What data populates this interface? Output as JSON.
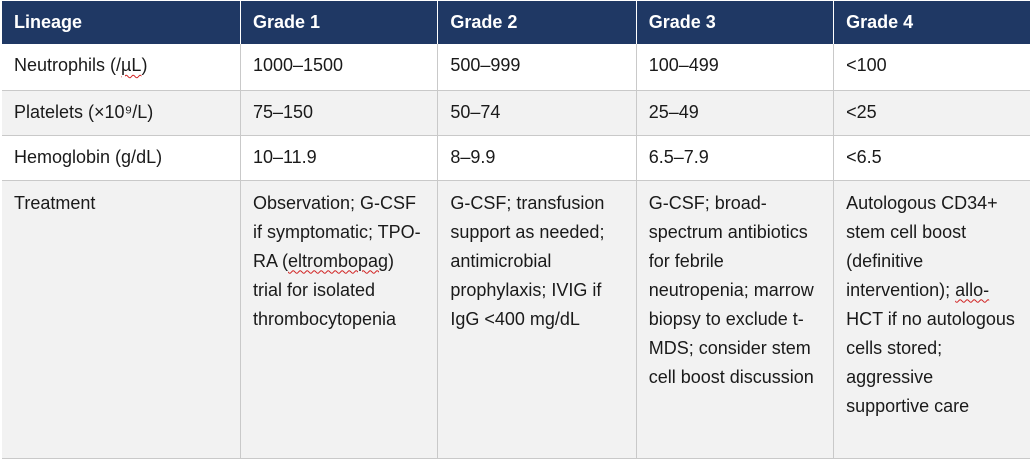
{
  "table": {
    "headers": [
      "Lineage",
      "Grade 1",
      "Grade 2",
      "Grade 3",
      "Grade 4"
    ],
    "rows": [
      {
        "lineage": "Neutrophils (/µL)",
        "grade1": "1000–1500",
        "grade2": "500–999",
        "grade3": "100–499",
        "grade4": "<100"
      },
      {
        "lineage": "Platelets (×10⁹/L)",
        "grade1": "75–150",
        "grade2": "50–74",
        "grade3": "25–49",
        "grade4": "<25"
      },
      {
        "lineage": "Hemoglobin (g/dL)",
        "grade1": "10–11.9",
        "grade2": "8–9.9",
        "grade3": "6.5–7.9",
        "grade4": "<6.5"
      },
      {
        "lineage": "Treatment",
        "grade1": "Observation; G-CSF if symptomatic; TPO-RA (eltrombopag) trial for isolated thrombocytopenia",
        "grade2": "G-CSF; transfusion support as needed; antimicrobial prophylaxis; IVIG if IgG <400 mg/dL",
        "grade3": "G-CSF; broad-spectrum antibiotics for febrile neutropenia; marrow biopsy to exclude t-MDS; consider stem cell boost discussion",
        "grade4": "Autologous CD34+ stem cell boost (definitive intervention); allo-HCT if no autologous cells stored; aggressive supportive care"
      }
    ]
  },
  "colors": {
    "header_bg": "#1f3864",
    "header_text": "#ffffff",
    "stripe_bg": "#f2f2f2",
    "grid_line": "#c9c9c9"
  }
}
